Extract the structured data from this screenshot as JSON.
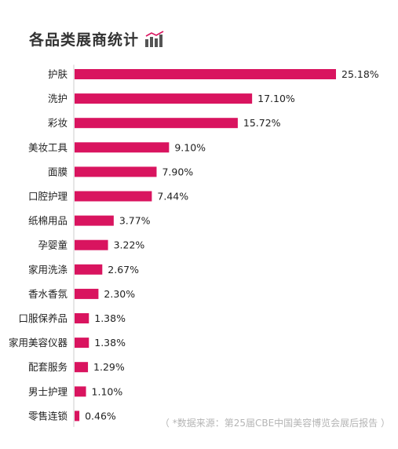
{
  "title": "各品类展商统计",
  "title_icon": "bar-chart-icon",
  "source": "（ *数据来源：第25届CBE中国美容博览会展后报告 ）",
  "colors": {
    "bar": "#d9145f",
    "icon": "#555555",
    "icon_accent": "#d9145f"
  },
  "chart_data": {
    "type": "bar",
    "orientation": "horizontal",
    "title": "各品类展商统计",
    "categories": [
      "护肤",
      "洗护",
      "彩妆",
      "美妆工具",
      "面膜",
      "口腔护理",
      "纸棉用品",
      "孕婴童",
      "家用洗涤",
      "香水香氛",
      "口服保养品",
      "家用美容仪器",
      "配套服务",
      "男士护理",
      "零售连锁"
    ],
    "values": [
      25.18,
      17.1,
      15.72,
      9.1,
      7.9,
      7.44,
      3.77,
      3.22,
      2.67,
      2.3,
      1.38,
      1.38,
      1.29,
      1.1,
      0.46
    ],
    "value_labels": [
      "25.18%",
      "17.10%",
      "15.72%",
      "9.10%",
      "7.90%",
      "7.44%",
      "3.77%",
      "3.22%",
      "2.67%",
      "2.30%",
      "1.38%",
      "1.38%",
      "1.29%",
      "1.10%",
      "0.46%"
    ],
    "unit": "%",
    "xlim": [
      0,
      25.18
    ],
    "grid": false,
    "legend": "none"
  }
}
